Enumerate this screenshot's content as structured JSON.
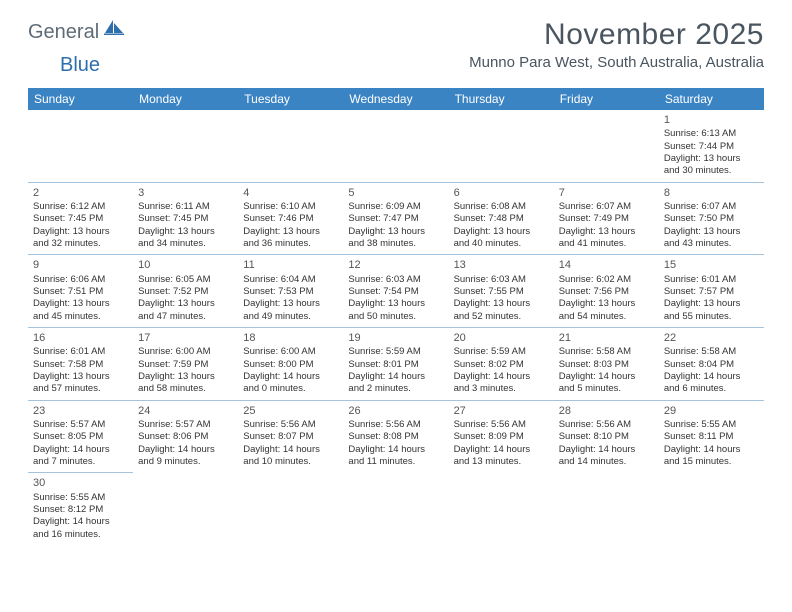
{
  "logo": {
    "text1": "General",
    "text2": "Blue"
  },
  "title": "November 2025",
  "location": "Munno Para West, South Australia, Australia",
  "colors": {
    "header_bg": "#3b84c4",
    "header_text": "#ffffff",
    "cell_border": "#a6c3de",
    "title_color": "#4a5560",
    "logo_gray": "#5f6c77",
    "logo_blue": "#2e6fab"
  },
  "daynames": [
    "Sunday",
    "Monday",
    "Tuesday",
    "Wednesday",
    "Thursday",
    "Friday",
    "Saturday"
  ],
  "weeks": [
    [
      null,
      null,
      null,
      null,
      null,
      null,
      {
        "n": "1",
        "sr": "Sunrise: 6:13 AM",
        "ss": "Sunset: 7:44 PM",
        "d1": "Daylight: 13 hours",
        "d2": "and 30 minutes."
      }
    ],
    [
      {
        "n": "2",
        "sr": "Sunrise: 6:12 AM",
        "ss": "Sunset: 7:45 PM",
        "d1": "Daylight: 13 hours",
        "d2": "and 32 minutes."
      },
      {
        "n": "3",
        "sr": "Sunrise: 6:11 AM",
        "ss": "Sunset: 7:45 PM",
        "d1": "Daylight: 13 hours",
        "d2": "and 34 minutes."
      },
      {
        "n": "4",
        "sr": "Sunrise: 6:10 AM",
        "ss": "Sunset: 7:46 PM",
        "d1": "Daylight: 13 hours",
        "d2": "and 36 minutes."
      },
      {
        "n": "5",
        "sr": "Sunrise: 6:09 AM",
        "ss": "Sunset: 7:47 PM",
        "d1": "Daylight: 13 hours",
        "d2": "and 38 minutes."
      },
      {
        "n": "6",
        "sr": "Sunrise: 6:08 AM",
        "ss": "Sunset: 7:48 PM",
        "d1": "Daylight: 13 hours",
        "d2": "and 40 minutes."
      },
      {
        "n": "7",
        "sr": "Sunrise: 6:07 AM",
        "ss": "Sunset: 7:49 PM",
        "d1": "Daylight: 13 hours",
        "d2": "and 41 minutes."
      },
      {
        "n": "8",
        "sr": "Sunrise: 6:07 AM",
        "ss": "Sunset: 7:50 PM",
        "d1": "Daylight: 13 hours",
        "d2": "and 43 minutes."
      }
    ],
    [
      {
        "n": "9",
        "sr": "Sunrise: 6:06 AM",
        "ss": "Sunset: 7:51 PM",
        "d1": "Daylight: 13 hours",
        "d2": "and 45 minutes."
      },
      {
        "n": "10",
        "sr": "Sunrise: 6:05 AM",
        "ss": "Sunset: 7:52 PM",
        "d1": "Daylight: 13 hours",
        "d2": "and 47 minutes."
      },
      {
        "n": "11",
        "sr": "Sunrise: 6:04 AM",
        "ss": "Sunset: 7:53 PM",
        "d1": "Daylight: 13 hours",
        "d2": "and 49 minutes."
      },
      {
        "n": "12",
        "sr": "Sunrise: 6:03 AM",
        "ss": "Sunset: 7:54 PM",
        "d1": "Daylight: 13 hours",
        "d2": "and 50 minutes."
      },
      {
        "n": "13",
        "sr": "Sunrise: 6:03 AM",
        "ss": "Sunset: 7:55 PM",
        "d1": "Daylight: 13 hours",
        "d2": "and 52 minutes."
      },
      {
        "n": "14",
        "sr": "Sunrise: 6:02 AM",
        "ss": "Sunset: 7:56 PM",
        "d1": "Daylight: 13 hours",
        "d2": "and 54 minutes."
      },
      {
        "n": "15",
        "sr": "Sunrise: 6:01 AM",
        "ss": "Sunset: 7:57 PM",
        "d1": "Daylight: 13 hours",
        "d2": "and 55 minutes."
      }
    ],
    [
      {
        "n": "16",
        "sr": "Sunrise: 6:01 AM",
        "ss": "Sunset: 7:58 PM",
        "d1": "Daylight: 13 hours",
        "d2": "and 57 minutes."
      },
      {
        "n": "17",
        "sr": "Sunrise: 6:00 AM",
        "ss": "Sunset: 7:59 PM",
        "d1": "Daylight: 13 hours",
        "d2": "and 58 minutes."
      },
      {
        "n": "18",
        "sr": "Sunrise: 6:00 AM",
        "ss": "Sunset: 8:00 PM",
        "d1": "Daylight: 14 hours",
        "d2": "and 0 minutes."
      },
      {
        "n": "19",
        "sr": "Sunrise: 5:59 AM",
        "ss": "Sunset: 8:01 PM",
        "d1": "Daylight: 14 hours",
        "d2": "and 2 minutes."
      },
      {
        "n": "20",
        "sr": "Sunrise: 5:59 AM",
        "ss": "Sunset: 8:02 PM",
        "d1": "Daylight: 14 hours",
        "d2": "and 3 minutes."
      },
      {
        "n": "21",
        "sr": "Sunrise: 5:58 AM",
        "ss": "Sunset: 8:03 PM",
        "d1": "Daylight: 14 hours",
        "d2": "and 5 minutes."
      },
      {
        "n": "22",
        "sr": "Sunrise: 5:58 AM",
        "ss": "Sunset: 8:04 PM",
        "d1": "Daylight: 14 hours",
        "d2": "and 6 minutes."
      }
    ],
    [
      {
        "n": "23",
        "sr": "Sunrise: 5:57 AM",
        "ss": "Sunset: 8:05 PM",
        "d1": "Daylight: 14 hours",
        "d2": "and 7 minutes."
      },
      {
        "n": "24",
        "sr": "Sunrise: 5:57 AM",
        "ss": "Sunset: 8:06 PM",
        "d1": "Daylight: 14 hours",
        "d2": "and 9 minutes."
      },
      {
        "n": "25",
        "sr": "Sunrise: 5:56 AM",
        "ss": "Sunset: 8:07 PM",
        "d1": "Daylight: 14 hours",
        "d2": "and 10 minutes."
      },
      {
        "n": "26",
        "sr": "Sunrise: 5:56 AM",
        "ss": "Sunset: 8:08 PM",
        "d1": "Daylight: 14 hours",
        "d2": "and 11 minutes."
      },
      {
        "n": "27",
        "sr": "Sunrise: 5:56 AM",
        "ss": "Sunset: 8:09 PM",
        "d1": "Daylight: 14 hours",
        "d2": "and 13 minutes."
      },
      {
        "n": "28",
        "sr": "Sunrise: 5:56 AM",
        "ss": "Sunset: 8:10 PM",
        "d1": "Daylight: 14 hours",
        "d2": "and 14 minutes."
      },
      {
        "n": "29",
        "sr": "Sunrise: 5:55 AM",
        "ss": "Sunset: 8:11 PM",
        "d1": "Daylight: 14 hours",
        "d2": "and 15 minutes."
      }
    ],
    [
      {
        "n": "30",
        "sr": "Sunrise: 5:55 AM",
        "ss": "Sunset: 8:12 PM",
        "d1": "Daylight: 14 hours",
        "d2": "and 16 minutes."
      },
      null,
      null,
      null,
      null,
      null,
      null
    ]
  ]
}
